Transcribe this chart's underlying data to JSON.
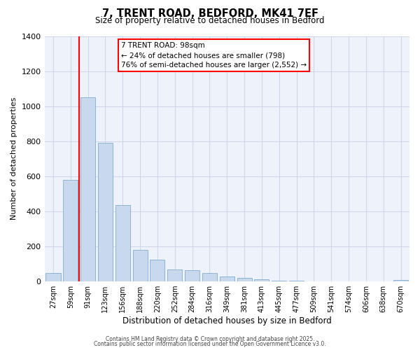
{
  "title": "7, TRENT ROAD, BEDFORD, MK41 7EF",
  "subtitle": "Size of property relative to detached houses in Bedford",
  "bar_color": "#c8d9ee",
  "bar_edge_color": "#8cb4d8",
  "background_color": "#eef2fb",
  "grid_color": "#cdd5e8",
  "ylabel": "Number of detached properties",
  "xlabel": "Distribution of detached houses by size in Bedford",
  "ylim": [
    0,
    1400
  ],
  "yticks": [
    0,
    200,
    400,
    600,
    800,
    1000,
    1200,
    1400
  ],
  "bin_labels": [
    "27sqm",
    "59sqm",
    "91sqm",
    "123sqm",
    "156sqm",
    "188sqm",
    "220sqm",
    "252sqm",
    "284sqm",
    "316sqm",
    "349sqm",
    "381sqm",
    "413sqm",
    "445sqm",
    "477sqm",
    "509sqm",
    "541sqm",
    "574sqm",
    "606sqm",
    "638sqm",
    "670sqm"
  ],
  "bar_values": [
    50,
    580,
    1050,
    790,
    435,
    180,
    125,
    70,
    65,
    50,
    30,
    22,
    12,
    6,
    4,
    0,
    0,
    0,
    0,
    0,
    10
  ],
  "red_line_index": 2,
  "annotation_title": "7 TRENT ROAD: 98sqm",
  "annotation_line1": "← 24% of detached houses are smaller (798)",
  "annotation_line2": "76% of semi-detached houses are larger (2,552) →",
  "footer1": "Contains HM Land Registry data © Crown copyright and database right 2025.",
  "footer2": "Contains public sector information licensed under the Open Government Licence v3.0."
}
